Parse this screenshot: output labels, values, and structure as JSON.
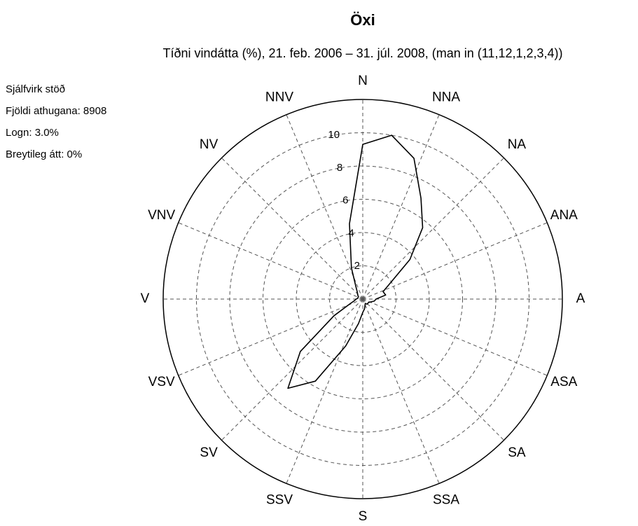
{
  "chart_data": {
    "type": "polar_line",
    "title": "Öxi",
    "subtitle": "Tíðni vindátta (%), 21. feb. 2006 – 31. júl. 2008, (man in (11,12,1,2,3,4))",
    "notes": [
      "Sjálfvirk stöð",
      "Fjöldi athugana: 8908",
      "Logn: 3.0%",
      "Breytileg átt: 0%"
    ],
    "directions": [
      "N",
      "NNA",
      "NA",
      "ANA",
      "A",
      "ASA",
      "SA",
      "SSA",
      "S",
      "SSV",
      "SV",
      "VSV",
      "V",
      "VNV",
      "NV",
      "NNV"
    ],
    "theta": [
      0,
      10,
      20,
      30,
      40,
      50,
      60,
      70,
      80,
      90,
      100,
      110,
      120,
      130,
      140,
      150,
      160,
      170,
      180,
      190,
      200,
      210,
      220,
      230,
      240,
      250,
      260,
      270,
      280,
      290,
      300,
      310,
      320,
      330,
      340,
      350
    ],
    "values": [
      9.3,
      10.0,
      9.0,
      7.0,
      5.6,
      3.7,
      1.9,
      1.3,
      1.4,
      0.8,
      0.7,
      0.5,
      0.4,
      0.4,
      0.4,
      0.3,
      0.4,
      0.6,
      0.8,
      1.5,
      3.0,
      5.7,
      7.0,
      4.9,
      2.0,
      0.8,
      0.5,
      0.4,
      0.3,
      0.3,
      0.3,
      0.4,
      0.5,
      0.8,
      2.0,
      4.6
    ],
    "color": "#000000",
    "rlim": [
      0,
      12
    ],
    "rticks": [
      2,
      4,
      6,
      8,
      10
    ],
    "grid": true
  }
}
